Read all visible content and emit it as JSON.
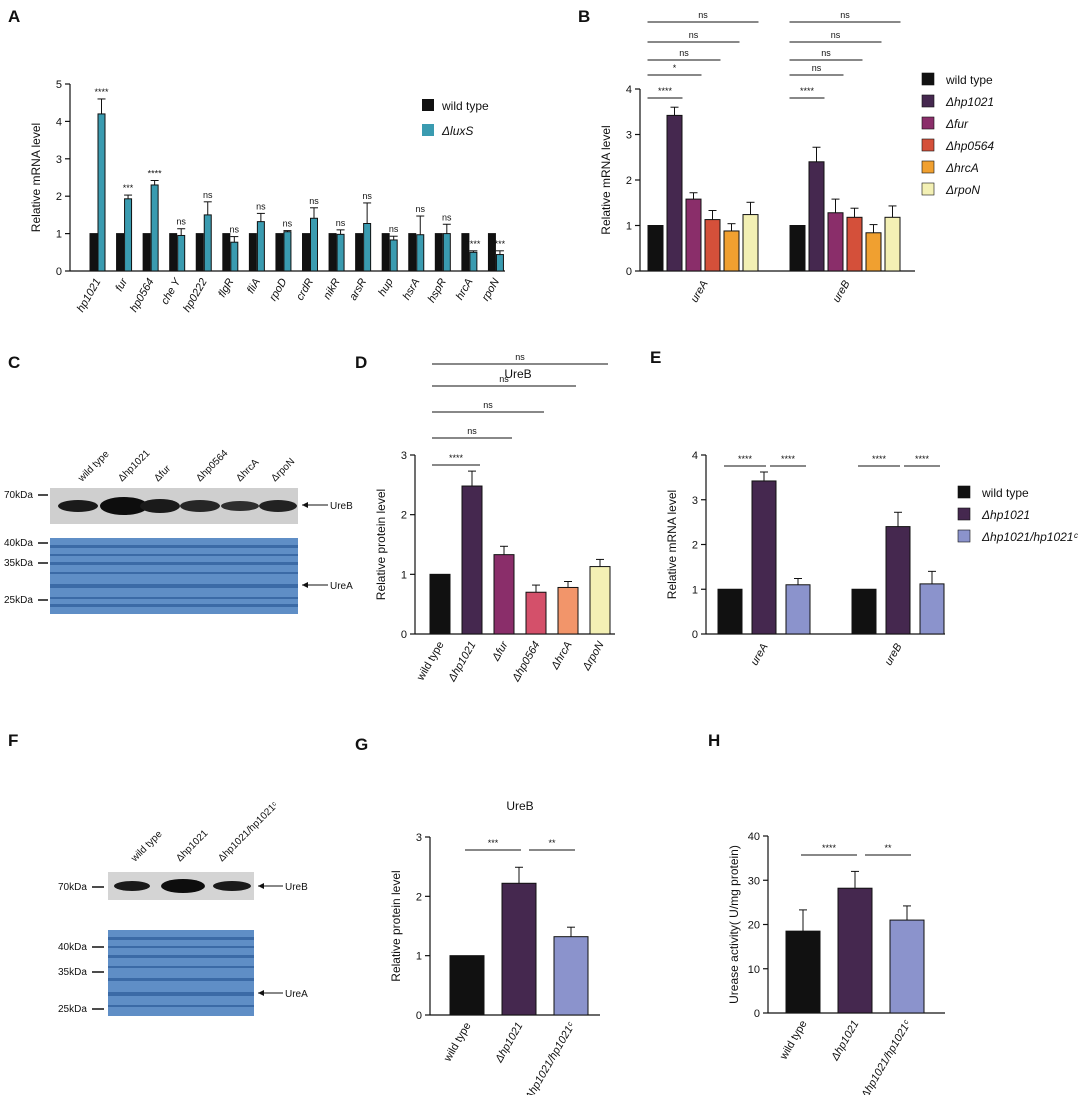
{
  "panels": {
    "A": "A",
    "B": "B",
    "C": "C",
    "D": "D",
    "E": "E",
    "F": "F",
    "G": "G",
    "H": "H"
  },
  "colors": {
    "black": "#111111",
    "cyan": "#3a9bb0",
    "purple": "#45284f",
    "magenta": "#8a2e6a",
    "red": "#d4503a",
    "orange": "#f0a030",
    "yellow": "#f3f0b4",
    "pink": "#d4506a",
    "salmon": "#f2956a",
    "lavender": "#8b93cc"
  },
  "chart_data": [
    {
      "id": "A",
      "type": "bar",
      "ylabel": "Relative mRNA  level",
      "ylim": [
        0,
        5
      ],
      "yticks": [
        "0",
        "1",
        "2",
        "3",
        "4",
        "5"
      ],
      "categories": [
        "hp1021",
        "fur",
        "hp0564",
        "che Y",
        "hp0222",
        "flgR",
        "fliA",
        "rpoD",
        "crdR",
        "nikR",
        "arsR",
        "hup",
        "hsrA",
        "hspR",
        "hrcA",
        "rpoN"
      ],
      "series": [
        {
          "name": "wild type",
          "values": [
            1,
            1,
            1,
            1,
            1,
            1,
            1,
            1,
            1,
            1,
            1,
            1,
            1,
            1,
            1,
            1
          ],
          "errors": [
            0,
            0,
            0,
            0,
            0,
            0,
            0,
            0,
            0,
            0,
            0,
            0,
            0,
            0,
            0,
            0
          ]
        },
        {
          "name": "ΔluxS",
          "values": [
            4.2,
            1.93,
            2.3,
            0.95,
            1.5,
            0.77,
            1.32,
            1.05,
            1.41,
            0.98,
            1.27,
            0.83,
            0.97,
            1.0,
            0.5,
            0.44
          ],
          "errors": [
            0.4,
            0.1,
            0.12,
            0.18,
            0.35,
            0.15,
            0.22,
            0.03,
            0.28,
            0.12,
            0.55,
            0.1,
            0.5,
            0.25,
            0.04,
            0.1
          ]
        }
      ],
      "sig": [
        "****",
        "***",
        "****",
        "ns",
        "ns",
        "ns",
        "ns",
        "ns",
        "ns",
        "ns",
        "ns",
        "ns",
        "ns",
        "ns",
        "****",
        "***"
      ]
    },
    {
      "id": "B",
      "type": "bar",
      "ylabel": "Relative mRNA level",
      "ylim": [
        0,
        4
      ],
      "yticks": [
        "0",
        "1",
        "2",
        "3",
        "4"
      ],
      "categories": [
        "ureA",
        "ureB"
      ],
      "series": [
        {
          "name": "wild type",
          "values": [
            1,
            1
          ],
          "errors": [
            0,
            0
          ]
        },
        {
          "name": "Δhp1021",
          "values": [
            3.42,
            2.4
          ],
          "errors": [
            0.18,
            0.32
          ]
        },
        {
          "name": "Δfur",
          "values": [
            1.58,
            1.28
          ],
          "errors": [
            0.14,
            0.3
          ]
        },
        {
          "name": "Δhp0564",
          "values": [
            1.13,
            1.18
          ],
          "errors": [
            0.2,
            0.2
          ]
        },
        {
          "name": "ΔhrcA",
          "values": [
            0.88,
            0.84
          ],
          "errors": [
            0.16,
            0.18
          ]
        },
        {
          "name": "ΔrpoN",
          "values": [
            1.24,
            1.18
          ],
          "errors": [
            0.27,
            0.25
          ]
        }
      ],
      "comparisons": [
        "****",
        "*",
        "ns",
        "ns",
        "ns"
      ],
      "comparisons_b": [
        "****",
        "ns",
        "ns",
        "ns",
        "ns"
      ]
    },
    {
      "id": "D",
      "type": "bar",
      "title": "UreB",
      "ylabel": "Relative protein  level",
      "ylim": [
        0,
        3
      ],
      "yticks": [
        "0",
        "1",
        "2",
        "3"
      ],
      "categories": [
        "wild type",
        "Δhp1021",
        "Δfur",
        "Δhp0564",
        "ΔhrcA",
        "ΔrpoN"
      ],
      "values": [
        1,
        2.48,
        1.33,
        0.7,
        0.78,
        1.13
      ],
      "errors": [
        0,
        0.25,
        0.14,
        0.12,
        0.1,
        0.12
      ],
      "comparisons": [
        "****",
        "ns",
        "ns",
        "ns",
        "ns"
      ]
    },
    {
      "id": "E",
      "type": "bar",
      "ylabel": "Relative mRNA level",
      "ylim": [
        0,
        4
      ],
      "yticks": [
        "0",
        "1",
        "2",
        "3",
        "4"
      ],
      "categories": [
        "ureA",
        "ureB"
      ],
      "series": [
        {
          "name": "wild type",
          "values": [
            1,
            1
          ],
          "errors": [
            0,
            0
          ]
        },
        {
          "name": "Δhp1021",
          "values": [
            3.42,
            2.4
          ],
          "errors": [
            0.2,
            0.32
          ]
        },
        {
          "name": "Δhp1021/hp1021ᶜ",
          "values": [
            1.1,
            1.12
          ],
          "errors": [
            0.14,
            0.28
          ]
        }
      ],
      "sig": [
        "****",
        "****",
        "****",
        "****"
      ]
    },
    {
      "id": "G",
      "type": "bar",
      "title": "UreB",
      "ylabel": "Relative protein  level",
      "ylim": [
        0,
        3
      ],
      "yticks": [
        "0",
        "1",
        "2",
        "3"
      ],
      "categories": [
        "wild type",
        "Δhp1021",
        "Δhp1021/hp1021ᶜ"
      ],
      "values": [
        1,
        2.22,
        1.32
      ],
      "errors": [
        0,
        0.27,
        0.16
      ],
      "sig": [
        "***",
        "**"
      ]
    },
    {
      "id": "H",
      "type": "bar",
      "ylabel": "Urease activity( U/mg protein)",
      "ylim": [
        0,
        40
      ],
      "yticks": [
        "0",
        "10",
        "20",
        "30",
        "40"
      ],
      "categories": [
        "wild type",
        "Δhp1021",
        "Δhp1021/hp1021ᶜ"
      ],
      "values": [
        18.5,
        28.2,
        21
      ],
      "errors": [
        4.8,
        3.8,
        3.2
      ],
      "sig": [
        "****",
        "**"
      ]
    }
  ],
  "blots": {
    "C": {
      "lanes": [
        "wild type",
        "Δhp1021",
        "Δfur",
        "Δhp0564",
        "ΔhrcA",
        "ΔrpoN"
      ],
      "markers": [
        "70kDa",
        "40kDa",
        "35kDa",
        "25kDa"
      ],
      "arrows": [
        "UreB",
        "UreA"
      ]
    },
    "F": {
      "lanes": [
        "wild type",
        "Δhp1021",
        "Δhp1021/hp1021ᶜ"
      ],
      "markers": [
        "70kDa",
        "40kDa",
        "35kDa",
        "25kDa"
      ],
      "arrows": [
        "UreB",
        "UreA"
      ]
    }
  }
}
